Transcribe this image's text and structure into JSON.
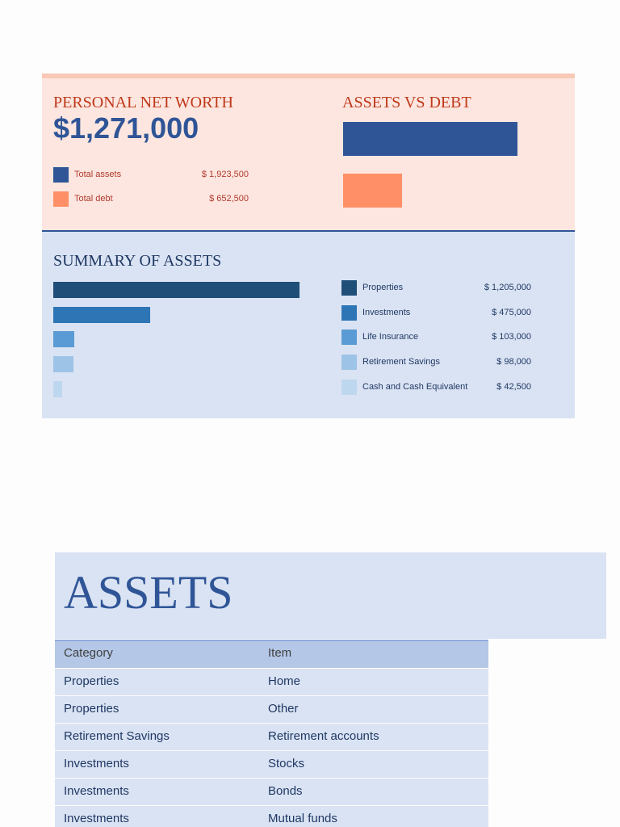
{
  "net_worth": {
    "title": "PERSONAL NET WORTH",
    "amount": "$1,271,000",
    "items": [
      {
        "name": "Total assets",
        "value": 1923500,
        "label": "$ 1,923,500",
        "color": "#2f5597"
      },
      {
        "name": "Total debt",
        "value": 652500,
        "label": "$ 652,500",
        "color": "#ff8f66"
      }
    ]
  },
  "assets_vs_debt": {
    "title": "ASSETS VS DEBT"
  },
  "summary": {
    "title": "SUMMARY OF ASSETS",
    "items": [
      {
        "name": "Properties",
        "value": 1205000,
        "label": "$ 1,205,000",
        "color": "#1f4e79"
      },
      {
        "name": "Investments",
        "value": 475000,
        "label": "$ 475,000",
        "color": "#2e75b6"
      },
      {
        "name": "Life Insurance",
        "value": 103000,
        "label": "$ 103,000",
        "color": "#5b9bd5"
      },
      {
        "name": "Retirement Savings",
        "value": 98000,
        "label": "$ 98,000",
        "color": "#9dc3e6"
      },
      {
        "name": "Cash and Cash Equivalent",
        "value": 42500,
        "label": "$ 42,500",
        "color": "#bdd7ee"
      }
    ]
  },
  "assets_table": {
    "title": "ASSETS",
    "columns": [
      "Category",
      "Item"
    ],
    "rows": [
      [
        "Properties",
        "Home"
      ],
      [
        "Properties",
        "Other"
      ],
      [
        "Retirement Savings",
        "Retirement accounts"
      ],
      [
        "Investments",
        "Stocks"
      ],
      [
        "Investments",
        "Bonds"
      ],
      [
        "Investments",
        "Mutual funds"
      ]
    ]
  }
}
